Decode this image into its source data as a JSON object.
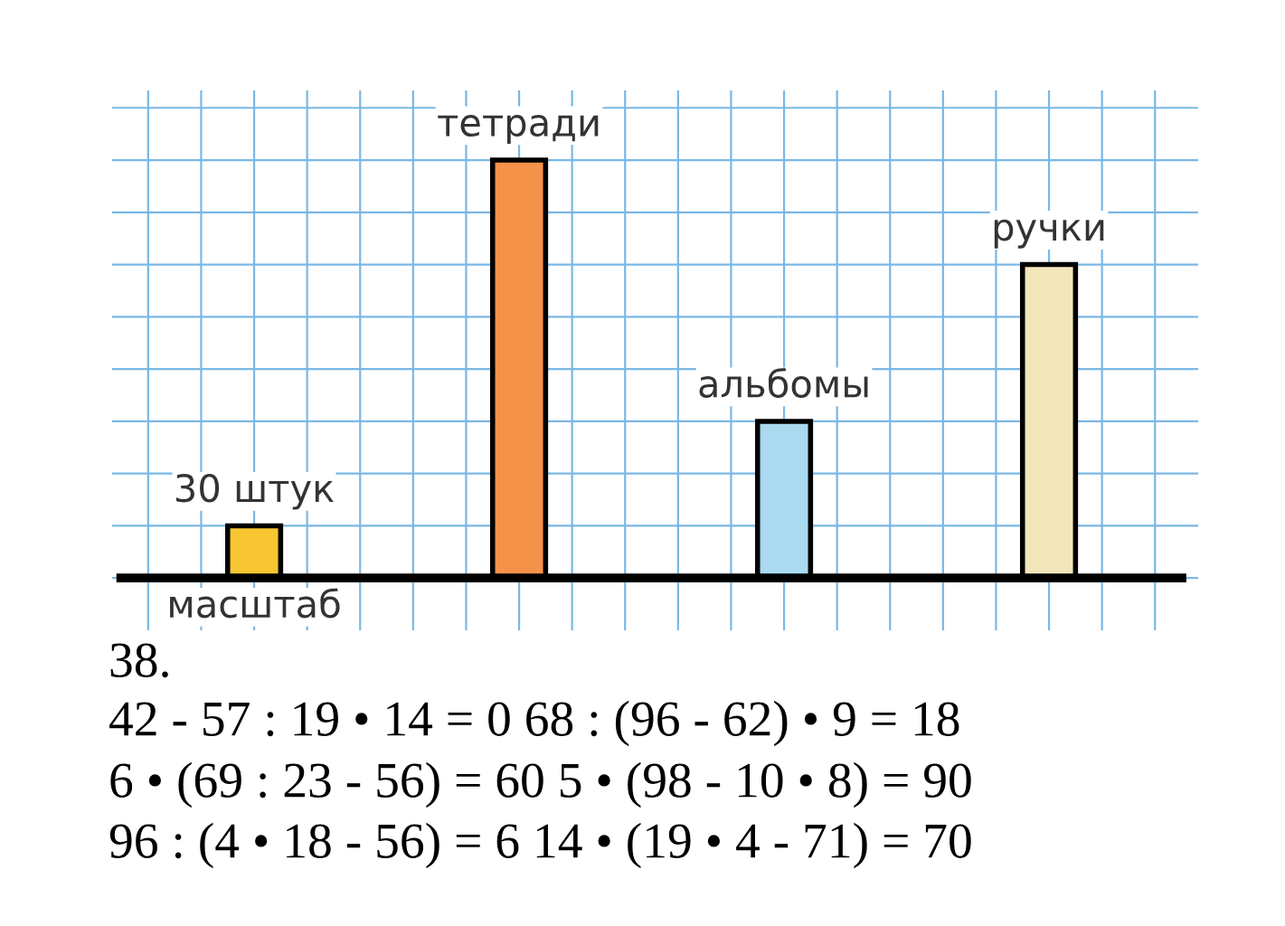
{
  "chart_data": {
    "type": "bar",
    "ylim": [
      -30,
      280
    ],
    "yticks": [
      {
        "value": 0,
        "label": null
      },
      {
        "value": 30,
        "label": null
      },
      {
        "value": 60,
        "label": null
      },
      {
        "value": 90,
        "label": null
      },
      {
        "value": 120,
        "label": null
      },
      {
        "value": 150,
        "label": null
      },
      {
        "value": 180,
        "label": null
      },
      {
        "value": 210,
        "label": null
      },
      {
        "value": 240,
        "label": null
      },
      {
        "value": 270,
        "label": null
      }
    ],
    "categories": [
      "масштаб",
      null,
      null,
      null
    ],
    "values": [
      30,
      240,
      90,
      180
    ],
    "colors": [
      "#f7c531",
      "#f5924a",
      "#a9daf0",
      "#f3e6bb"
    ],
    "value_labels": [
      "30 штук",
      "тетради",
      "альбомы",
      "ручки"
    ],
    "grid": true,
    "annotations": [
      "38.",
      "42 - 57 : 19 • 14 = 0 68 : (96 - 62) • 9 = 18",
      "6 • (69 : 23 - 56) = 60 5 • (98 - 10 • 8) = 90",
      "96 : (4 • 18 - 56) = 6 14 • (19 • 4 - 71) = 70"
    ]
  }
}
